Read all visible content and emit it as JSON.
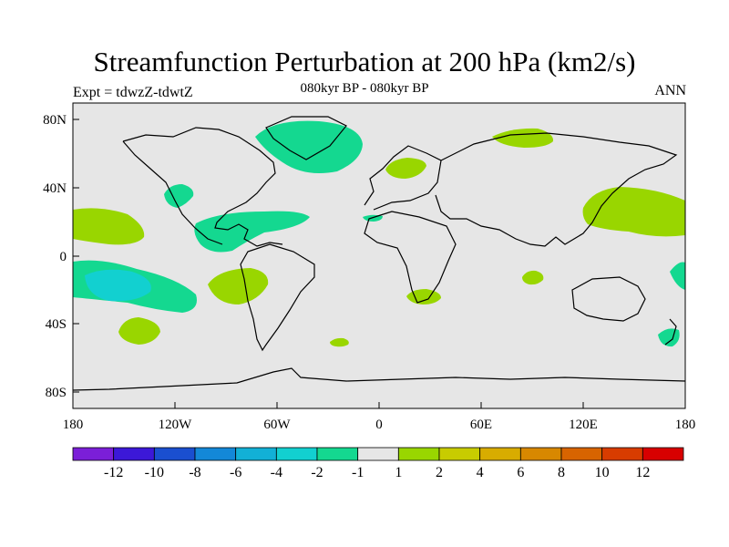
{
  "title": "Streamfunction Perturbation at 200 hPa (km2/s)",
  "subtitle": "080kyr BP - 080kyr BP",
  "left_label": "Expt = tdwzZ-tdwtZ",
  "right_label": "ANN",
  "axes": {
    "lon_ticks": [
      "180",
      "120W",
      "60W",
      "0",
      "60E",
      "120E",
      "180"
    ],
    "lat_ticks": [
      "80N",
      "40N",
      "0",
      "40S",
      "80S"
    ]
  },
  "colorbar": {
    "colors": [
      "#7b1fd8",
      "#3c18d8",
      "#1a4fd0",
      "#1388d8",
      "#12b0d6",
      "#12d0d0",
      "#14d890",
      "#e6e6e6",
      "#99d600",
      "#c8cc00",
      "#d8ac00",
      "#d88800",
      "#d86400",
      "#d83c00",
      "#d80000"
    ],
    "labels": [
      "-12",
      "-10",
      "-8",
      "-6",
      "-4",
      "-2",
      "-1",
      "1",
      "2",
      "4",
      "6",
      "8",
      "10",
      "12"
    ]
  },
  "colors": {
    "background_map": "#e6e6e6",
    "negative_fill": "#14d890",
    "strong_negative_fill": "#12d0d0",
    "positive_fill": "#99d600"
  }
}
